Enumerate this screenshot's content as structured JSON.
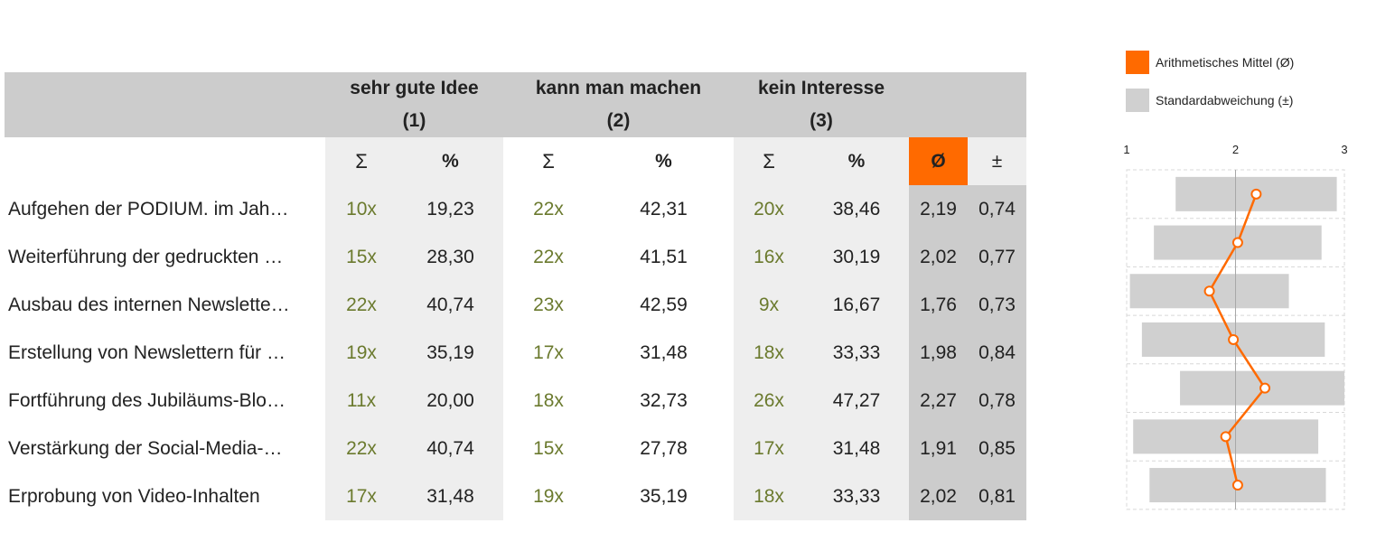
{
  "table": {
    "header_groups": [
      {
        "label": "sehr gute Idee",
        "num": "(1)"
      },
      {
        "label": "kann man machen",
        "num": "(2)"
      },
      {
        "label": "kein Interesse",
        "num": "(3)"
      }
    ],
    "sum_symbol": "Σ",
    "pct_symbol": "%",
    "mean_symbol": "Ø",
    "sd_symbol": "±",
    "rows": [
      {
        "item": "Aufgehen der PODIUM. im Jah…",
        "c1": "10x",
        "p1": "19,23",
        "c2": "22x",
        "p2": "42,31",
        "c3": "20x",
        "p3": "38,46",
        "mean": "2,19",
        "sd": "0,74"
      },
      {
        "item": "Weiterführung der gedruckten …",
        "c1": "15x",
        "p1": "28,30",
        "c2": "22x",
        "p2": "41,51",
        "c3": "16x",
        "p3": "30,19",
        "mean": "2,02",
        "sd": "0,77"
      },
      {
        "item": "Ausbau des internen Newslette…",
        "c1": "22x",
        "p1": "40,74",
        "c2": "23x",
        "p2": "42,59",
        "c3": "9x",
        "p3": "16,67",
        "mean": "1,76",
        "sd": "0,73"
      },
      {
        "item": "Erstellung von Newslettern für …",
        "c1": "19x",
        "p1": "35,19",
        "c2": "17x",
        "p2": "31,48",
        "c3": "18x",
        "p3": "33,33",
        "mean": "1,98",
        "sd": "0,84"
      },
      {
        "item": "Fortführung des Jubiläums-Blo…",
        "c1": "11x",
        "p1": "20,00",
        "c2": "18x",
        "p2": "32,73",
        "c3": "26x",
        "p3": "47,27",
        "mean": "2,27",
        "sd": "0,78"
      },
      {
        "item": "Verstärkung der Social-Media-…",
        "c1": "22x",
        "p1": "40,74",
        "c2": "15x",
        "p2": "27,78",
        "c3": "17x",
        "p3": "31,48",
        "mean": "1,91",
        "sd": "0,85"
      },
      {
        "item": "Erprobung von Video-Inhalten",
        "c1": "17x",
        "p1": "31,48",
        "c2": "19x",
        "p2": "35,19",
        "c3": "18x",
        "p3": "33,33",
        "mean": "2,02",
        "sd": "0,81"
      }
    ]
  },
  "legend": {
    "mean_label": "Arithmetisches Mittel (Ø)",
    "sd_label": "Standardabweichung (±)"
  },
  "colors": {
    "accent": "#ff6a00",
    "sd_bar": "#d0d0d0",
    "count_text": "#6b7a2e"
  },
  "chart_data": {
    "type": "line",
    "x_ticks": [
      "1",
      "2",
      "3"
    ],
    "xlim": [
      1,
      3
    ],
    "grid": true,
    "series": [
      {
        "name": "Arithmetisches Mittel (Ø)",
        "values": [
          2.19,
          2.02,
          1.76,
          1.98,
          2.27,
          1.91,
          2.02
        ]
      },
      {
        "name": "Standardabweichung (±)",
        "values": [
          0.74,
          0.77,
          0.73,
          0.84,
          0.78,
          0.85,
          0.81
        ]
      }
    ]
  }
}
